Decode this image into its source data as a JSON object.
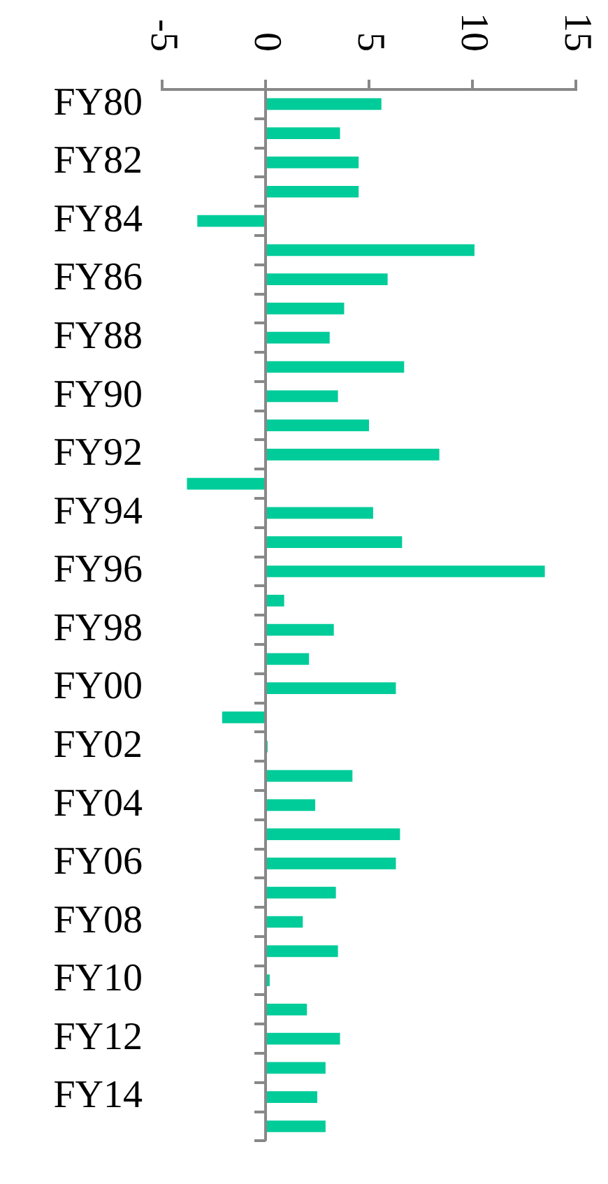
{
  "chart_data": {
    "type": "bar",
    "orientation": "horizontal",
    "categories": [
      "FY80",
      null,
      "FY82",
      null,
      "FY84",
      null,
      "FY86",
      null,
      "FY88",
      null,
      "FY90",
      null,
      "FY92",
      null,
      "FY94",
      null,
      "FY96",
      null,
      "FY98",
      null,
      "FY00",
      null,
      "FY02",
      null,
      "FY04",
      null,
      "FY06",
      null,
      "FY08",
      null,
      "FY10",
      null,
      "FY12",
      null,
      "FY14",
      null
    ],
    "values": [
      5.6,
      3.6,
      4.5,
      4.5,
      -3.3,
      10.1,
      5.9,
      3.8,
      3.1,
      6.7,
      3.5,
      5.0,
      8.4,
      -3.8,
      5.2,
      6.6,
      13.5,
      0.9,
      3.3,
      2.1,
      6.3,
      -2.1,
      0.1,
      4.2,
      2.4,
      6.5,
      6.3,
      3.4,
      1.8,
      3.5,
      0.2,
      2.0,
      3.6,
      2.9,
      2.5,
      2.9
    ],
    "color": "#00cc99",
    "ref_lines": [
      {
        "axis": "x",
        "value": 0,
        "color": "#888888"
      }
    ],
    "xlim": [
      -5,
      15
    ],
    "xticks": [
      -5,
      0,
      5,
      10,
      15
    ],
    "grid": false,
    "legend": false
  }
}
